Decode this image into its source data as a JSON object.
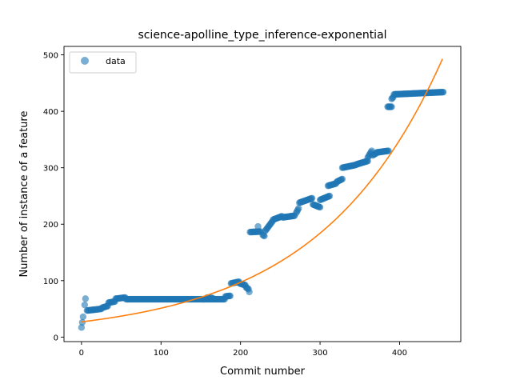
{
  "chart_data": {
    "type": "scatter",
    "title": "science-apolline_type_inference-exponential",
    "xlabel": "Commit number",
    "ylabel": "Number of instance of a feature",
    "xlim": [
      -22,
      477
    ],
    "ylim": [
      -8,
      515
    ],
    "xticks": [
      0,
      100,
      200,
      300,
      400
    ],
    "yticks": [
      0,
      100,
      200,
      300,
      400,
      500
    ],
    "grid": false,
    "legend": {
      "placement": "top-left",
      "entries": [
        "data"
      ]
    },
    "colors": {
      "data": "#1f77b4",
      "fit": "#ff7f0e"
    },
    "series": [
      {
        "name": "data",
        "kind": "scatter",
        "segments": [
          {
            "x0": 0,
            "y0": 17,
            "x1": 0,
            "y1": 17
          },
          {
            "x0": 1,
            "y0": 26,
            "x1": 1,
            "y1": 26
          },
          {
            "x0": 2,
            "y0": 36,
            "x1": 2,
            "y1": 36
          },
          {
            "x0": 4,
            "y0": 57,
            "x1": 4,
            "y1": 57
          },
          {
            "x0": 5,
            "y0": 68,
            "x1": 5,
            "y1": 68
          },
          {
            "x0": 7,
            "y0": 47,
            "x1": 25,
            "y1": 50
          },
          {
            "x0": 26,
            "y0": 52,
            "x1": 33,
            "y1": 55
          },
          {
            "x0": 34,
            "y0": 61,
            "x1": 42,
            "y1": 63
          },
          {
            "x0": 43,
            "y0": 68,
            "x1": 55,
            "y1": 70
          },
          {
            "x0": 56,
            "y0": 67,
            "x1": 180,
            "y1": 67
          },
          {
            "x0": 158,
            "y0": 70,
            "x1": 165,
            "y1": 69
          },
          {
            "x0": 181,
            "y0": 72,
            "x1": 187,
            "y1": 73
          },
          {
            "x0": 188,
            "y0": 95,
            "x1": 198,
            "y1": 98
          },
          {
            "x0": 199,
            "y0": 95,
            "x1": 206,
            "y1": 92
          },
          {
            "x0": 207,
            "y0": 88,
            "x1": 210,
            "y1": 85
          },
          {
            "x0": 211,
            "y0": 80,
            "x1": 211,
            "y1": 80
          },
          {
            "x0": 212,
            "y0": 186,
            "x1": 225,
            "y1": 187
          },
          {
            "x0": 222,
            "y0": 196,
            "x1": 222,
            "y1": 196
          },
          {
            "x0": 228,
            "y0": 181,
            "x1": 230,
            "y1": 179
          },
          {
            "x0": 231,
            "y0": 188,
            "x1": 240,
            "y1": 205
          },
          {
            "x0": 241,
            "y0": 208,
            "x1": 252,
            "y1": 214
          },
          {
            "x0": 253,
            "y0": 212,
            "x1": 268,
            "y1": 215
          },
          {
            "x0": 270,
            "y0": 220,
            "x1": 273,
            "y1": 228
          },
          {
            "x0": 274,
            "y0": 238,
            "x1": 290,
            "y1": 246
          },
          {
            "x0": 291,
            "y0": 235,
            "x1": 300,
            "y1": 230
          },
          {
            "x0": 300,
            "y0": 243,
            "x1": 312,
            "y1": 250
          },
          {
            "x0": 310,
            "y0": 268,
            "x1": 320,
            "y1": 272
          },
          {
            "x0": 321,
            "y0": 275,
            "x1": 328,
            "y1": 280
          },
          {
            "x0": 328,
            "y0": 300,
            "x1": 345,
            "y1": 305
          },
          {
            "x0": 346,
            "y0": 306,
            "x1": 360,
            "y1": 312
          },
          {
            "x0": 360,
            "y0": 318,
            "x1": 365,
            "y1": 330
          },
          {
            "x0": 366,
            "y0": 322,
            "x1": 370,
            "y1": 325
          },
          {
            "x0": 371,
            "y0": 327,
            "x1": 386,
            "y1": 330
          },
          {
            "x0": 385,
            "y0": 408,
            "x1": 390,
            "y1": 408
          },
          {
            "x0": 390,
            "y0": 422,
            "x1": 392,
            "y1": 425
          },
          {
            "x0": 393,
            "y0": 430,
            "x1": 455,
            "y1": 434
          }
        ]
      },
      {
        "name": "",
        "kind": "line",
        "model": "exponential",
        "a": 27,
        "b": 0.006398,
        "x_range": [
          0,
          455
        ]
      }
    ]
  }
}
